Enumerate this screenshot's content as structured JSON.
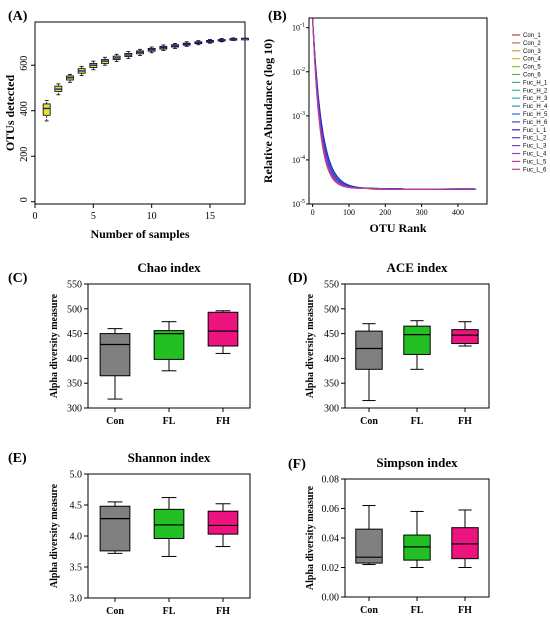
{
  "chart_data": [
    {
      "id": "A",
      "panel_label": "(A)",
      "type": "box",
      "xlabel": "Number of samples",
      "ylabel": "OTUs detected",
      "xlim": [
        0,
        18
      ],
      "ylim": [
        -10,
        790
      ],
      "xticks": [
        "0",
        "5",
        "10",
        "15"
      ],
      "yticks": [
        "0",
        "200",
        "400",
        "600"
      ],
      "box_color": "#e8e22a",
      "median_color": "#1a1aa8",
      "x": [
        1,
        2,
        3,
        4,
        5,
        6,
        7,
        8,
        9,
        10,
        11,
        12,
        13,
        14,
        15,
        16,
        17,
        18
      ],
      "boxes": [
        {
          "min": 355,
          "q1": 380,
          "median": 410,
          "q3": 430,
          "max": 445
        },
        {
          "min": 470,
          "q1": 485,
          "median": 495,
          "q3": 508,
          "max": 518
        },
        {
          "min": 525,
          "q1": 535,
          "median": 545,
          "q3": 553,
          "max": 560
        },
        {
          "min": 555,
          "q1": 565,
          "median": 575,
          "q3": 585,
          "max": 595
        },
        {
          "min": 580,
          "q1": 590,
          "median": 600,
          "q3": 608,
          "max": 618
        },
        {
          "min": 600,
          "q1": 608,
          "median": 618,
          "q3": 625,
          "max": 635
        },
        {
          "min": 617,
          "q1": 625,
          "median": 632,
          "q3": 640,
          "max": 648
        },
        {
          "min": 630,
          "q1": 638,
          "median": 645,
          "q3": 652,
          "max": 660
        },
        {
          "min": 643,
          "q1": 650,
          "median": 657,
          "q3": 663,
          "max": 670
        },
        {
          "min": 655,
          "q1": 662,
          "median": 668,
          "q3": 674,
          "max": 680
        },
        {
          "min": 665,
          "q1": 671,
          "median": 677,
          "q3": 683,
          "max": 689
        },
        {
          "min": 674,
          "q1": 680,
          "median": 685,
          "q3": 690,
          "max": 696
        },
        {
          "min": 683,
          "q1": 688,
          "median": 692,
          "q3": 697,
          "max": 703
        },
        {
          "min": 690,
          "q1": 695,
          "median": 699,
          "q3": 703,
          "max": 708
        },
        {
          "min": 697,
          "q1": 701,
          "median": 705,
          "q3": 709,
          "max": 713
        },
        {
          "min": 703,
          "q1": 707,
          "median": 710,
          "q3": 713,
          "max": 717
        },
        {
          "min": 709,
          "q1": 712,
          "median": 715,
          "q3": 717,
          "max": 720
        },
        {
          "min": 718,
          "q1": 718,
          "median": 718,
          "q3": 718,
          "max": 718
        }
      ]
    },
    {
      "id": "B",
      "panel_label": "(B)",
      "type": "line",
      "xlabel": "OTU Rank",
      "ylabel": "Relative Abundance (log 10)",
      "log_y": true,
      "xlim": [
        -10,
        480
      ],
      "ylim_exp": [
        -5,
        -0.78
      ],
      "xticks": [
        "0",
        "100",
        "200",
        "300",
        "400"
      ],
      "ytick_exponents": [
        -1,
        -2,
        -3,
        -4,
        -5
      ],
      "legend_position": "right",
      "series": [
        {
          "name": "Con_1",
          "color": "#b5422a",
          "end_x": 440,
          "k": 0.04
        },
        {
          "name": "Con_2",
          "color": "#c87632",
          "end_x": 390,
          "k": 0.044
        },
        {
          "name": "Con_3",
          "color": "#c9a12a",
          "end_x": 330,
          "k": 0.048
        },
        {
          "name": "Con_4",
          "color": "#c7c22a",
          "end_x": 270,
          "k": 0.052
        },
        {
          "name": "Con_5",
          "color": "#8fc23a",
          "end_x": 300,
          "k": 0.05
        },
        {
          "name": "Con_6",
          "color": "#5ab83a",
          "end_x": 350,
          "k": 0.046
        },
        {
          "name": "Fuc_H_1",
          "color": "#3ab87a",
          "end_x": 360,
          "k": 0.045
        },
        {
          "name": "Fuc_H_2",
          "color": "#2ab8a4",
          "end_x": 410,
          "k": 0.042
        },
        {
          "name": "Fuc_H_3",
          "color": "#2aaec6",
          "end_x": 420,
          "k": 0.041
        },
        {
          "name": "Fuc_H_4",
          "color": "#2a92d0",
          "end_x": 430,
          "k": 0.04
        },
        {
          "name": "Fuc_H_5",
          "color": "#2a72d8",
          "end_x": 380,
          "k": 0.043
        },
        {
          "name": "Fuc_H_6",
          "color": "#2a4ed8",
          "end_x": 400,
          "k": 0.042
        },
        {
          "name": "Fuc_L_1",
          "color": "#1a2ab8",
          "end_x": 450,
          "k": 0.039
        },
        {
          "name": "Fuc_L_2",
          "color": "#5a3ad0",
          "end_x": 370,
          "k": 0.044
        },
        {
          "name": "Fuc_L_3",
          "color": "#7a3ad0",
          "end_x": 340,
          "k": 0.047
        },
        {
          "name": "Fuc_L_4",
          "color": "#9a3ac8",
          "end_x": 320,
          "k": 0.049
        },
        {
          "name": "Fuc_L_5",
          "color": "#b23ab8",
          "end_x": 310,
          "k": 0.049
        },
        {
          "name": "Fuc_L_6",
          "color": "#c23a9a",
          "end_x": 290,
          "k": 0.051
        }
      ]
    },
    {
      "id": "C",
      "panel_label": "(C)",
      "type": "box",
      "title": "Chao index",
      "ylabel": "Alpha diversity measure",
      "ylim": [
        300,
        550
      ],
      "yticks": [
        "300",
        "350",
        "400",
        "450",
        "500",
        "550"
      ],
      "categories": [
        "Con",
        "FL",
        "FH"
      ],
      "colors": [
        "#808080",
        "#22c022",
        "#ee1480"
      ],
      "boxes": [
        {
          "min": 318,
          "q1": 365,
          "median": 428,
          "q3": 450,
          "max": 460
        },
        {
          "min": 375,
          "q1": 398,
          "median": 450,
          "q3": 456,
          "max": 474
        },
        {
          "min": 410,
          "q1": 425,
          "median": 455,
          "q3": 493,
          "max": 496
        }
      ]
    },
    {
      "id": "D",
      "panel_label": "(D)",
      "type": "box",
      "title": "ACE index",
      "ylabel": "Alpha diversity measure",
      "ylim": [
        300,
        550
      ],
      "yticks": [
        "300",
        "350",
        "400",
        "450",
        "500",
        "550"
      ],
      "categories": [
        "Con",
        "FL",
        "FH"
      ],
      "colors": [
        "#808080",
        "#22c022",
        "#ee1480"
      ],
      "boxes": [
        {
          "min": 315,
          "q1": 378,
          "median": 420,
          "q3": 455,
          "max": 470
        },
        {
          "min": 378,
          "q1": 408,
          "median": 448,
          "q3": 465,
          "max": 476
        },
        {
          "min": 425,
          "q1": 430,
          "median": 447,
          "q3": 458,
          "max": 474
        }
      ]
    },
    {
      "id": "E",
      "panel_label": "(E)",
      "type": "box",
      "title": "Shannon index",
      "ylabel": "Alpha diversity measure",
      "ylim": [
        3.0,
        5.0
      ],
      "yticks": [
        "3.0",
        "3.5",
        "4.0",
        "4.5",
        "5.0"
      ],
      "categories": [
        "Con",
        "FL",
        "FH"
      ],
      "colors": [
        "#808080",
        "#22c022",
        "#ee1480"
      ],
      "boxes": [
        {
          "min": 3.72,
          "q1": 3.76,
          "median": 4.28,
          "q3": 4.48,
          "max": 4.55
        },
        {
          "min": 3.67,
          "q1": 3.96,
          "median": 4.18,
          "q3": 4.43,
          "max": 4.62
        },
        {
          "min": 3.83,
          "q1": 4.03,
          "median": 4.17,
          "q3": 4.4,
          "max": 4.52
        }
      ]
    },
    {
      "id": "F",
      "panel_label": "(F)",
      "type": "box",
      "title": "Simpson index",
      "ylabel": "Alpha diversity measure",
      "ylim": [
        0.0,
        0.08
      ],
      "yticks": [
        "0.00",
        "0.02",
        "0.04",
        "0.06",
        "0.08"
      ],
      "categories": [
        "Con",
        "FL",
        "FH"
      ],
      "colors": [
        "#808080",
        "#22c022",
        "#ee1480"
      ],
      "boxes": [
        {
          "min": 0.022,
          "q1": 0.023,
          "median": 0.027,
          "q3": 0.046,
          "max": 0.062
        },
        {
          "min": 0.02,
          "q1": 0.025,
          "median": 0.034,
          "q3": 0.042,
          "max": 0.058
        },
        {
          "min": 0.02,
          "q1": 0.026,
          "median": 0.036,
          "q3": 0.047,
          "max": 0.059
        }
      ]
    }
  ]
}
